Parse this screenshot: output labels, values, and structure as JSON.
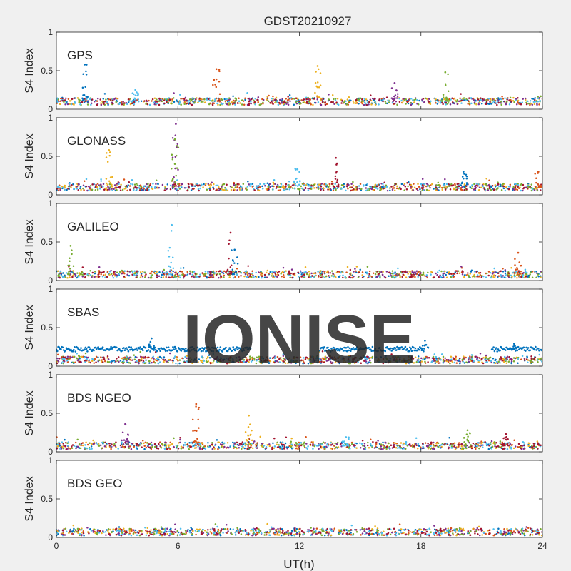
{
  "figure": {
    "title": "GDST20210927",
    "xlabel": "UT(h)",
    "watermark": "IONISE",
    "background": "#f0f0f0",
    "axes_background": "#ffffff",
    "watermark_color": "#e3e3e3"
  },
  "chart_data": {
    "type": "scatter",
    "title": "GDST20210927",
    "xlabel": "UT(h)",
    "ylabel": "S4 Index",
    "xlim": [
      0,
      24
    ],
    "ylim": [
      0,
      1
    ],
    "x_ticks": [
      "0",
      "6",
      "12",
      "18",
      "24"
    ],
    "y_ticks": [
      "0",
      "0.5",
      "1"
    ],
    "series_colors": [
      "#0072BD",
      "#D95319",
      "#EDB120",
      "#7E2F8E",
      "#77AC30",
      "#4DBEEE",
      "#A2142F"
    ],
    "panels": [
      {
        "label": "GPS",
        "baseline": 0.1,
        "spikes": [
          {
            "x": 1.4,
            "s4": 0.58
          },
          {
            "x": 7.9,
            "s4": 0.52
          },
          {
            "x": 12.9,
            "s4": 0.56
          },
          {
            "x": 16.7,
            "s4": 0.34
          },
          {
            "x": 19.2,
            "s4": 0.48
          },
          {
            "x": 3.9,
            "s4": 0.25
          }
        ]
      },
      {
        "label": "GLONASS",
        "baseline": 0.1,
        "spikes": [
          {
            "x": 2.6,
            "s4": 0.58
          },
          {
            "x": 5.9,
            "s4": 0.92
          },
          {
            "x": 5.85,
            "s4": 0.72
          },
          {
            "x": 11.9,
            "s4": 0.34
          },
          {
            "x": 13.8,
            "s4": 0.48
          },
          {
            "x": 20.1,
            "s4": 0.3
          },
          {
            "x": 23.8,
            "s4": 0.3
          }
        ]
      },
      {
        "label": "GALILEO",
        "baseline": 0.08,
        "spikes": [
          {
            "x": 0.7,
            "s4": 0.45
          },
          {
            "x": 5.7,
            "s4": 0.72
          },
          {
            "x": 8.6,
            "s4": 0.62
          },
          {
            "x": 8.8,
            "s4": 0.4
          },
          {
            "x": 22.8,
            "s4": 0.36
          }
        ]
      },
      {
        "label": "SBAS",
        "baseline": 0.08,
        "band": {
          "s4": 0.22,
          "segments": [
            [
              0,
              9.6
            ],
            [
              13.0,
              18.2
            ],
            [
              21.5,
              24
            ]
          ],
          "spikes": [
            {
              "x": 4.7,
              "s4": 0.36
            },
            {
              "x": 18.2,
              "s4": 0.33
            },
            {
              "x": 22.6,
              "s4": 0.29
            }
          ]
        },
        "spikes": []
      },
      {
        "label": "BDS NGEO",
        "baseline": 0.08,
        "spikes": [
          {
            "x": 6.9,
            "s4": 0.62
          },
          {
            "x": 9.5,
            "s4": 0.47
          },
          {
            "x": 3.4,
            "s4": 0.36
          },
          {
            "x": 20.3,
            "s4": 0.28
          },
          {
            "x": 14.3,
            "s4": 0.19
          },
          {
            "x": 22.2,
            "s4": 0.23
          }
        ]
      },
      {
        "label": "BDS GEO",
        "baseline": 0.07,
        "spikes": []
      }
    ]
  }
}
